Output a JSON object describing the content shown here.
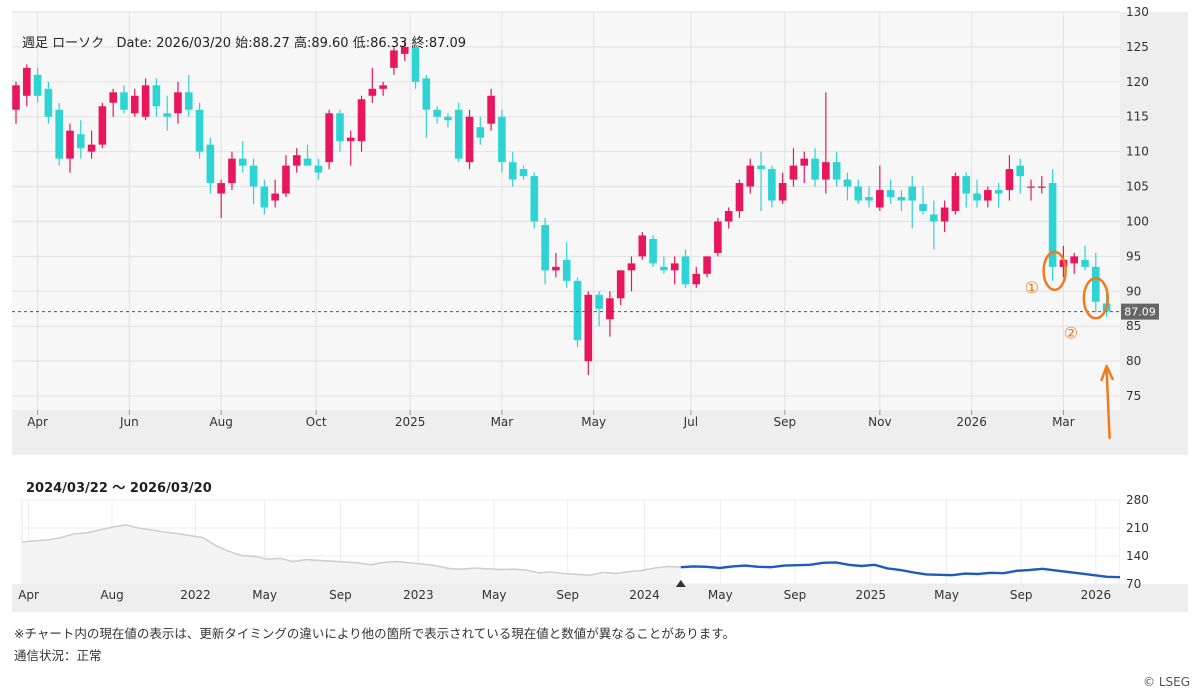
{
  "info": {
    "title": "週足 ローソク",
    "date_label": "Date:",
    "date": "2026/03/20",
    "open_label": "始:",
    "open": "88.27",
    "high_label": "高:",
    "high": "89.60",
    "low_label": "低:",
    "low": "86.33",
    "close_label": "終:",
    "close": "87.09"
  },
  "range_label": "2024/03/22 〜 2026/03/20",
  "note": "※チャート内の現在値の表示は、更新タイミングの違いにより他の箇所で表示されている現在値と数値が異なることがあります。",
  "status": "通信状況：正常",
  "copyright": "© LSEG",
  "colors": {
    "up": "#e8175d",
    "down": "#2ed3d3",
    "nav_history": "#cfcfcf",
    "nav_range": "#1f5bbf",
    "annotation": "#f07a1e"
  },
  "chart_data": [
    {
      "type": "candlestick",
      "title": "",
      "ylim": [
        73,
        130
      ],
      "y_ticks": [
        75,
        80,
        85,
        90,
        95,
        100,
        105,
        110,
        115,
        120,
        125,
        130
      ],
      "x_tick_labels": [
        "Apr",
        "Jun",
        "Aug",
        "Oct",
        "2025",
        "Mar",
        "May",
        "Jul",
        "Sep",
        "Nov",
        "2026",
        "Mar"
      ],
      "x_tick_index": [
        2,
        10.5,
        19,
        27.8,
        36.5,
        45,
        53.5,
        62.5,
        71.2,
        80,
        88.5,
        97
      ],
      "current_value": 87.09,
      "current_value_label": "87.09",
      "grid": true,
      "candles": [
        {
          "o": 116.0,
          "h": 120.0,
          "l": 114.0,
          "c": 119.5
        },
        {
          "o": 118.0,
          "h": 122.5,
          "l": 116.5,
          "c": 122.0
        },
        {
          "o": 121.0,
          "h": 122.0,
          "l": 117.0,
          "c": 118.0
        },
        {
          "o": 119.0,
          "h": 120.0,
          "l": 114.0,
          "c": 115.0
        },
        {
          "o": 116.0,
          "h": 117.0,
          "l": 108.0,
          "c": 109.0
        },
        {
          "o": 109.0,
          "h": 114.0,
          "l": 107.0,
          "c": 113.0
        },
        {
          "o": 112.5,
          "h": 114.5,
          "l": 109.0,
          "c": 110.5
        },
        {
          "o": 110.0,
          "h": 113.0,
          "l": 109.0,
          "c": 111.0
        },
        {
          "o": 111.0,
          "h": 117.0,
          "l": 110.5,
          "c": 116.5
        },
        {
          "o": 117.0,
          "h": 119.0,
          "l": 115.0,
          "c": 118.5
        },
        {
          "o": 118.5,
          "h": 119.5,
          "l": 115.5,
          "c": 116.0
        },
        {
          "o": 115.5,
          "h": 119.0,
          "l": 115.0,
          "c": 118.0
        },
        {
          "o": 115.0,
          "h": 120.5,
          "l": 114.5,
          "c": 119.5
        },
        {
          "o": 119.5,
          "h": 120.5,
          "l": 115.0,
          "c": 116.5
        },
        {
          "o": 115.5,
          "h": 118.0,
          "l": 113.0,
          "c": 115.0
        },
        {
          "o": 115.5,
          "h": 120.0,
          "l": 114.0,
          "c": 118.5
        },
        {
          "o": 118.5,
          "h": 121.0,
          "l": 115.0,
          "c": 116.0
        },
        {
          "o": 116.0,
          "h": 117.0,
          "l": 109.0,
          "c": 110.0
        },
        {
          "o": 111.0,
          "h": 112.0,
          "l": 104.0,
          "c": 105.5
        },
        {
          "o": 104.0,
          "h": 106.0,
          "l": 100.5,
          "c": 105.5
        },
        {
          "o": 105.5,
          "h": 110.0,
          "l": 104.5,
          "c": 109.0
        },
        {
          "o": 109.0,
          "h": 111.5,
          "l": 107.0,
          "c": 108.0
        },
        {
          "o": 108.0,
          "h": 109.0,
          "l": 102.5,
          "c": 105.0
        },
        {
          "o": 105.0,
          "h": 106.0,
          "l": 101.0,
          "c": 102.0
        },
        {
          "o": 103.0,
          "h": 106.0,
          "l": 102.0,
          "c": 104.0
        },
        {
          "o": 104.0,
          "h": 109.5,
          "l": 103.5,
          "c": 108.0
        },
        {
          "o": 108.0,
          "h": 110.5,
          "l": 107.0,
          "c": 109.5
        },
        {
          "o": 109.0,
          "h": 111.0,
          "l": 108.5,
          "c": 108.0
        },
        {
          "o": 108.0,
          "h": 109.0,
          "l": 106.0,
          "c": 107.0
        },
        {
          "o": 108.5,
          "h": 116.0,
          "l": 107.5,
          "c": 115.5
        },
        {
          "o": 115.5,
          "h": 116.0,
          "l": 110.0,
          "c": 111.5
        },
        {
          "o": 111.5,
          "h": 113.0,
          "l": 108.0,
          "c": 112.0
        },
        {
          "o": 111.5,
          "h": 118.0,
          "l": 110.0,
          "c": 117.5
        },
        {
          "o": 118.0,
          "h": 122.0,
          "l": 117.0,
          "c": 119.0
        },
        {
          "o": 119.0,
          "h": 120.0,
          "l": 118.0,
          "c": 119.5
        },
        {
          "o": 122.0,
          "h": 125.0,
          "l": 121.0,
          "c": 124.5
        },
        {
          "o": 124.0,
          "h": 126.0,
          "l": 123.0,
          "c": 125.0
        },
        {
          "o": 125.0,
          "h": 125.0,
          "l": 119.0,
          "c": 120.0
        },
        {
          "o": 120.5,
          "h": 121.0,
          "l": 112.0,
          "c": 116.0
        },
        {
          "o": 116.0,
          "h": 116.5,
          "l": 114.0,
          "c": 115.0
        },
        {
          "o": 115.0,
          "h": 115.5,
          "l": 113.5,
          "c": 114.5
        },
        {
          "o": 116.0,
          "h": 117.0,
          "l": 108.5,
          "c": 109.0
        },
        {
          "o": 108.5,
          "h": 116.0,
          "l": 107.5,
          "c": 115.0
        },
        {
          "o": 113.5,
          "h": 115.0,
          "l": 111.0,
          "c": 112.0
        },
        {
          "o": 114.0,
          "h": 119.0,
          "l": 113.0,
          "c": 118.0
        },
        {
          "o": 115.0,
          "h": 116.0,
          "l": 107.0,
          "c": 108.5
        },
        {
          "o": 108.5,
          "h": 110.0,
          "l": 105.0,
          "c": 106.0
        },
        {
          "o": 107.5,
          "h": 108.0,
          "l": 106.0,
          "c": 106.5
        },
        {
          "o": 106.5,
          "h": 107.0,
          "l": 99.0,
          "c": 100.0
        },
        {
          "o": 99.5,
          "h": 100.5,
          "l": 91.0,
          "c": 93.0
        },
        {
          "o": 93.0,
          "h": 95.5,
          "l": 92.0,
          "c": 93.5
        },
        {
          "o": 94.5,
          "h": 97.0,
          "l": 90.5,
          "c": 91.5
        },
        {
          "o": 91.5,
          "h": 92.0,
          "l": 82.0,
          "c": 83.0
        },
        {
          "o": 80.0,
          "h": 90.0,
          "l": 78.0,
          "c": 89.5
        },
        {
          "o": 89.5,
          "h": 90.0,
          "l": 85.0,
          "c": 87.5
        },
        {
          "o": 86.0,
          "h": 90.0,
          "l": 83.5,
          "c": 89.0
        },
        {
          "o": 89.0,
          "h": 93.0,
          "l": 88.0,
          "c": 93.0
        },
        {
          "o": 93.0,
          "h": 95.0,
          "l": 90.0,
          "c": 94.0
        },
        {
          "o": 95.0,
          "h": 98.5,
          "l": 94.5,
          "c": 98.0
        },
        {
          "o": 97.5,
          "h": 98.0,
          "l": 93.5,
          "c": 94.0
        },
        {
          "o": 93.5,
          "h": 95.0,
          "l": 92.5,
          "c": 93.0
        },
        {
          "o": 93.0,
          "h": 95.0,
          "l": 91.0,
          "c": 94.0
        },
        {
          "o": 95.0,
          "h": 96.0,
          "l": 90.5,
          "c": 91.0
        },
        {
          "o": 91.0,
          "h": 93.5,
          "l": 90.5,
          "c": 92.5
        },
        {
          "o": 92.5,
          "h": 95.0,
          "l": 92.0,
          "c": 95.0
        },
        {
          "o": 95.5,
          "h": 100.5,
          "l": 95.0,
          "c": 100.0
        },
        {
          "o": 100.0,
          "h": 102.0,
          "l": 99.0,
          "c": 101.5
        },
        {
          "o": 101.5,
          "h": 106.0,
          "l": 100.5,
          "c": 105.5
        },
        {
          "o": 105.0,
          "h": 109.0,
          "l": 104.0,
          "c": 108.0
        },
        {
          "o": 108.0,
          "h": 110.0,
          "l": 101.5,
          "c": 107.5
        },
        {
          "o": 107.5,
          "h": 108.0,
          "l": 102.0,
          "c": 103.0
        },
        {
          "o": 103.0,
          "h": 107.0,
          "l": 102.5,
          "c": 105.5
        },
        {
          "o": 106.0,
          "h": 110.5,
          "l": 105.0,
          "c": 108.0
        },
        {
          "o": 108.0,
          "h": 110.0,
          "l": 105.5,
          "c": 109.0
        },
        {
          "o": 109.0,
          "h": 110.5,
          "l": 105.0,
          "c": 106.0
        },
        {
          "o": 106.0,
          "h": 118.5,
          "l": 104.0,
          "c": 108.5
        },
        {
          "o": 108.5,
          "h": 110.0,
          "l": 105.0,
          "c": 106.0
        },
        {
          "o": 106.0,
          "h": 107.0,
          "l": 103.0,
          "c": 105.0
        },
        {
          "o": 105.0,
          "h": 106.0,
          "l": 102.5,
          "c": 103.0
        },
        {
          "o": 103.5,
          "h": 105.0,
          "l": 102.0,
          "c": 103.0
        },
        {
          "o": 102.0,
          "h": 108.0,
          "l": 101.5,
          "c": 104.5
        },
        {
          "o": 104.5,
          "h": 106.0,
          "l": 102.5,
          "c": 103.5
        },
        {
          "o": 103.5,
          "h": 104.5,
          "l": 101.5,
          "c": 103.0
        },
        {
          "o": 105.0,
          "h": 106.5,
          "l": 99.0,
          "c": 103.0
        },
        {
          "o": 102.5,
          "h": 105.0,
          "l": 101.0,
          "c": 101.5
        },
        {
          "o": 101.0,
          "h": 103.0,
          "l": 96.0,
          "c": 100.0
        },
        {
          "o": 100.0,
          "h": 103.0,
          "l": 98.5,
          "c": 102.0
        },
        {
          "o": 101.5,
          "h": 107.0,
          "l": 101.0,
          "c": 106.5
        },
        {
          "o": 106.5,
          "h": 107.0,
          "l": 102.0,
          "c": 104.0
        },
        {
          "o": 104.0,
          "h": 106.0,
          "l": 102.0,
          "c": 103.0
        },
        {
          "o": 103.0,
          "h": 105.0,
          "l": 102.0,
          "c": 104.5
        },
        {
          "o": 104.5,
          "h": 105.5,
          "l": 102.0,
          "c": 104.0
        },
        {
          "o": 104.5,
          "h": 109.5,
          "l": 103.0,
          "c": 107.5
        },
        {
          "o": 108.0,
          "h": 109.0,
          "l": 104.0,
          "c": 106.5
        },
        {
          "o": 105.0,
          "h": 106.0,
          "l": 103.0,
          "c": 105.0
        },
        {
          "o": 105.0,
          "h": 106.5,
          "l": 104.0,
          "c": 105.0
        },
        {
          "o": 105.5,
          "h": 107.5,
          "l": 91.5,
          "c": 93.5
        },
        {
          "o": 93.5,
          "h": 96.5,
          "l": 92.0,
          "c": 94.5
        },
        {
          "o": 94.0,
          "h": 95.5,
          "l": 92.5,
          "c": 95.0
        },
        {
          "o": 94.5,
          "h": 96.5,
          "l": 93.0,
          "c": 93.5
        },
        {
          "o": 93.5,
          "h": 95.5,
          "l": 87.0,
          "c": 88.5
        },
        {
          "o": 88.27,
          "h": 89.6,
          "l": 86.33,
          "c": 87.09
        }
      ],
      "annotations": [
        "①",
        "②"
      ]
    },
    {
      "type": "line",
      "title": "",
      "ylim": [
        70,
        280
      ],
      "y_ticks": [
        70,
        140,
        210,
        280
      ],
      "x_tick_labels": [
        "Apr",
        "Aug",
        "2022",
        "May",
        "Sep",
        "2023",
        "May",
        "Sep",
        "2024",
        "May",
        "Sep",
        "2025",
        "May",
        "Sep",
        "2026"
      ],
      "x_tick_frac": [
        0.006,
        0.082,
        0.158,
        0.221,
        0.29,
        0.361,
        0.43,
        0.497,
        0.567,
        0.636,
        0.704,
        0.773,
        0.842,
        0.91,
        0.978
      ],
      "range_start_frac": 0.6,
      "series": [
        {
          "values": [
            175,
            178,
            180,
            186,
            195,
            198,
            205,
            212,
            218,
            210,
            205,
            200,
            196,
            191,
            186,
            166,
            152,
            141,
            139,
            132,
            134,
            126,
            131,
            129,
            127,
            125,
            123,
            118,
            124,
            126,
            123,
            120,
            116,
            109,
            107,
            110,
            108,
            106,
            107,
            105,
            98,
            100,
            96,
            94,
            92,
            99,
            96,
            101,
            104,
            110,
            114,
            112,
            114,
            113,
            110,
            114,
            116,
            113,
            112,
            116,
            117,
            118,
            123,
            124,
            118,
            115,
            118,
            109,
            105,
            99,
            94,
            93,
            92,
            96,
            95,
            98,
            97,
            103,
            105,
            108,
            104,
            100,
            96,
            92,
            88,
            87
          ]
        }
      ]
    }
  ]
}
